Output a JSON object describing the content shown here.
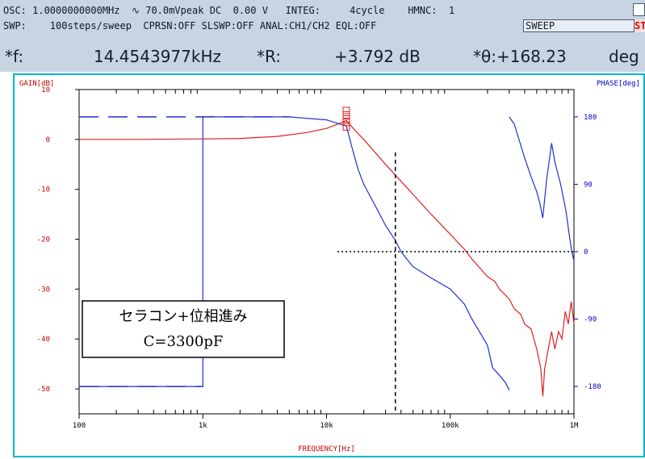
{
  "status": {
    "line1": "OSC: 1.0000000000MHz  ∿ 70.0mVpeak DC  0.00 V   INTEG:     4cycle    HMNC:  1",
    "line2": "SWP:    100steps/sweep  CPRSN:OFF SLSWP:OFF ANAL:CH1/CH2 EQL:OFF",
    "sweep_label": "SWEEP",
    "stop_label": "STO"
  },
  "readout": {
    "f_label": "*f:",
    "f_value": "14.4543977kHz",
    "r_label": "*R:",
    "r_value": "+3.792 dB",
    "theta_label": "*θ:+168.23",
    "theta_unit": "deg"
  },
  "colors": {
    "gain": "#e02020",
    "phase": "#2030d0",
    "frame": "#00b8c8",
    "axis_text": "#c00000",
    "phase_text": "#0000c0"
  },
  "chart_data": {
    "type": "line",
    "xlabel": "FREQUENCY[Hz]",
    "ylabel_left": "GAIN[dB]",
    "ylabel_right": "PHASE[deg]",
    "x_scale": "log",
    "xlim": [
      100,
      1000000
    ],
    "ylim_left": [
      -55,
      10
    ],
    "ylim_right": [
      -216.5,
      216.5
    ],
    "x_ticks": [
      {
        "value": 100,
        "label": "100"
      },
      {
        "value": 1000,
        "label": "1k"
      },
      {
        "value": 10000,
        "label": "10k"
      },
      {
        "value": 100000,
        "label": "100k"
      },
      {
        "value": 1000000,
        "label": "1M"
      }
    ],
    "y_ticks_left": [
      10,
      0,
      -10,
      -20,
      -30,
      -40,
      -50
    ],
    "y_ticks_right": [
      {
        "value": 180,
        "label": "180"
      },
      {
        "value": 90,
        "label": "90"
      },
      {
        "value": 0,
        "label": "0"
      },
      {
        "value": -90,
        "label": "-90"
      },
      {
        "value": -180,
        "label": "-180"
      }
    ],
    "series": [
      {
        "axis": "left",
        "color": "#e02020",
        "points": [
          [
            100,
            0
          ],
          [
            300,
            0
          ],
          [
            1000,
            0.1
          ],
          [
            2000,
            0.2
          ],
          [
            4000,
            0.6
          ],
          [
            7000,
            1.4
          ],
          [
            10000,
            2.2
          ],
          [
            13000,
            3.3
          ],
          [
            14454,
            3.8
          ],
          [
            17000,
            1.8
          ],
          [
            20000,
            0
          ],
          [
            30000,
            -5
          ],
          [
            50000,
            -11
          ],
          [
            70000,
            -15
          ],
          [
            100000,
            -19
          ],
          [
            130000,
            -22
          ],
          [
            150000,
            -24
          ],
          [
            200000,
            -27.5
          ],
          [
            230000,
            -28.5
          ],
          [
            250000,
            -30
          ],
          [
            300000,
            -32
          ],
          [
            330000,
            -34
          ],
          [
            370000,
            -35
          ],
          [
            400000,
            -37
          ],
          [
            450000,
            -38
          ],
          [
            500000,
            -42
          ],
          [
            540000,
            -46
          ],
          [
            560000,
            -51.5
          ],
          [
            580000,
            -46
          ],
          [
            620000,
            -42
          ],
          [
            660000,
            -38.5
          ],
          [
            700000,
            -42
          ],
          [
            750000,
            -38.5
          ],
          [
            800000,
            -40
          ],
          [
            850000,
            -34.5
          ],
          [
            900000,
            -37
          ],
          [
            950000,
            -32.5
          ],
          [
            1000000,
            -37
          ]
        ]
      },
      {
        "axis": "right",
        "color": "#2030d0",
        "points": [
          [
            100,
            -180
          ],
          [
            1000,
            -180
          ],
          [
            1000,
            180
          ],
          [
            5000,
            180
          ],
          [
            10000,
            176
          ],
          [
            13000,
            170
          ],
          [
            14454,
            168.2
          ],
          [
            16000,
            140
          ],
          [
            18000,
            110
          ],
          [
            20000,
            90
          ],
          [
            25000,
            60
          ],
          [
            30000,
            35
          ],
          [
            36000,
            15
          ],
          [
            40000,
            0
          ],
          [
            50000,
            -20
          ],
          [
            70000,
            -35
          ],
          [
            100000,
            -50
          ],
          [
            130000,
            -70
          ],
          [
            150000,
            -90
          ],
          [
            200000,
            -125
          ],
          [
            220000,
            -155
          ],
          [
            250000,
            -165
          ],
          [
            280000,
            -175
          ],
          [
            300000,
            -185
          ]
        ]
      },
      {
        "axis": "right",
        "color": "#2030d0",
        "points": [
          [
            300000,
            180
          ],
          [
            330000,
            170
          ],
          [
            400000,
            125
          ],
          [
            450000,
            100
          ],
          [
            500000,
            80
          ],
          [
            530000,
            65
          ],
          [
            560000,
            45
          ],
          [
            600000,
            95
          ],
          [
            630000,
            120
          ],
          [
            660000,
            145
          ],
          [
            700000,
            120
          ],
          [
            780000,
            90
          ],
          [
            860000,
            55
          ],
          [
            920000,
            20
          ],
          [
            960000,
            0
          ],
          [
            1000000,
            -12
          ]
        ]
      }
    ],
    "markers": [
      {
        "axis": "left",
        "x": 14454,
        "values": [
          2.5,
          3.4,
          4.1,
          4.9,
          5.8
        ]
      }
    ],
    "cursor": {
      "x": 36000,
      "y_phase": 0,
      "style": "dashed"
    },
    "annotations": [
      "セラコン+位相進み",
      "C=3300pF"
    ]
  }
}
